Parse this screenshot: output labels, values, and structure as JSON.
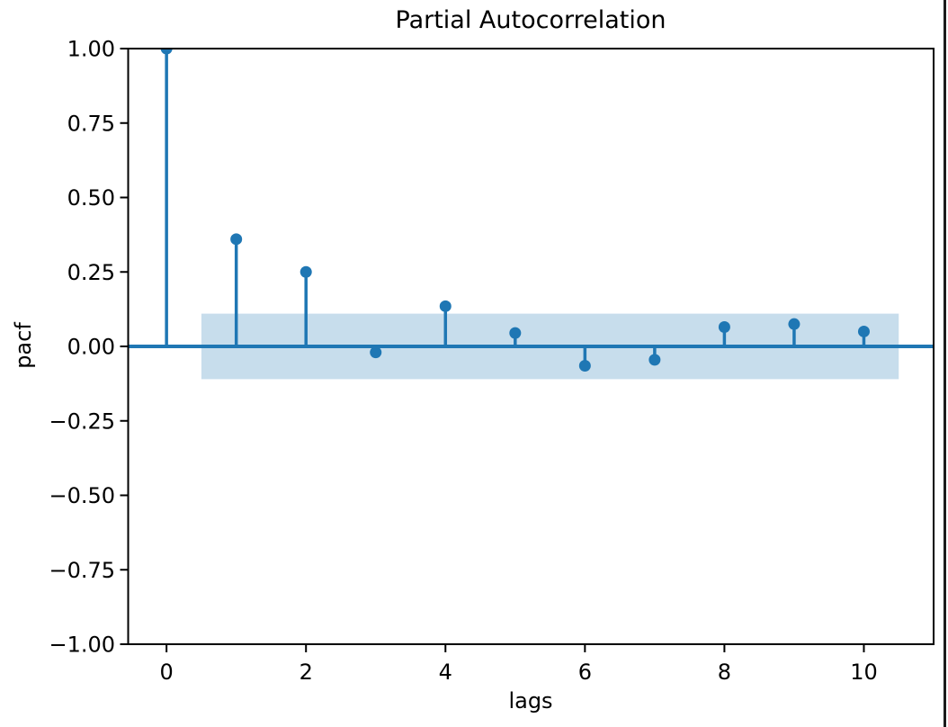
{
  "window": {
    "right_border_color": "#1b1b1b"
  },
  "chart_data": {
    "type": "scatter",
    "style": "stem (partial autocorrelation plot)",
    "title": "Partial Autocorrelation",
    "xlabel": "lags",
    "ylabel": "pacf",
    "x": [
      0,
      1,
      2,
      3,
      4,
      5,
      6,
      7,
      8,
      9,
      10
    ],
    "values": [
      1.0,
      0.36,
      0.25,
      -0.02,
      0.135,
      0.045,
      -0.065,
      -0.045,
      0.065,
      0.075,
      0.05
    ],
    "xlim": [
      -0.55,
      11.0
    ],
    "ylim": [
      -1.0,
      1.0
    ],
    "xticks": [
      0,
      2,
      4,
      6,
      8,
      10
    ],
    "xtick_labels": [
      "0",
      "2",
      "4",
      "6",
      "8",
      "10"
    ],
    "yticks": [
      1.0,
      0.75,
      0.5,
      0.25,
      0.0,
      -0.25,
      -0.5,
      -0.75,
      -1.0
    ],
    "ytick_labels": [
      "1.00",
      "0.75",
      "0.50",
      "0.25",
      "0.00",
      "−0.25",
      "−0.50",
      "−0.75",
      "−1.00"
    ],
    "zero_line_y": 0.0,
    "confidence_band": {
      "x_start": 0.5,
      "x_end": 10.5,
      "upper": 0.11,
      "lower": -0.11
    },
    "grid": false,
    "legend": "none",
    "colors": {
      "series": "#1f77b4",
      "band": "rgba(31, 119, 180, 0.25)",
      "spine": "#000000",
      "tick_text": "#000000"
    }
  }
}
